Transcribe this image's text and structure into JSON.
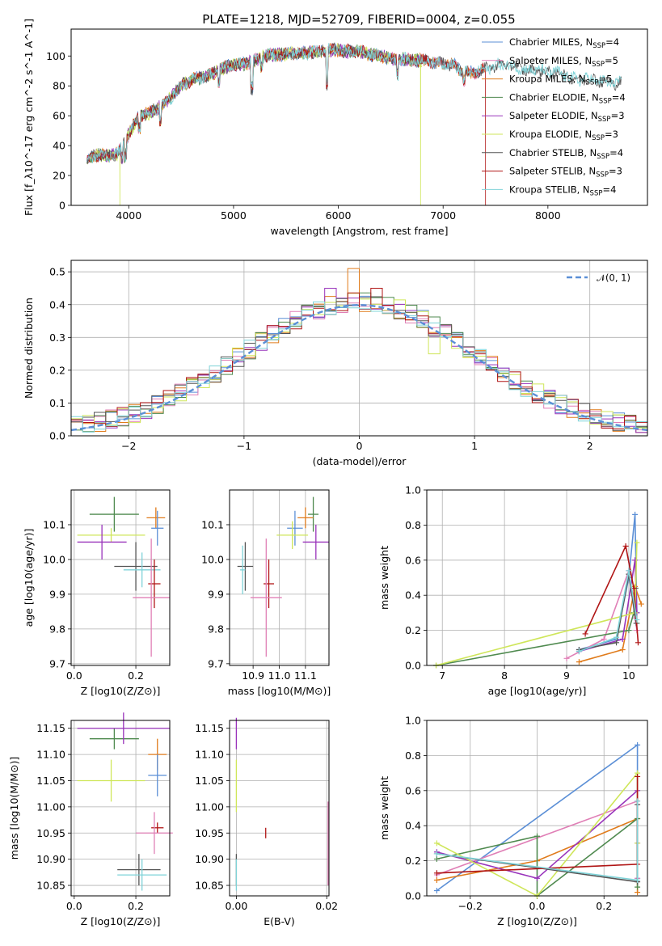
{
  "colors": {
    "chabrier_miles": "#5b8fd6",
    "salpeter_miles": "#e07fb6",
    "kroupa_miles": "#e07b1b",
    "chabrier_elodie": "#4f8a4f",
    "salpeter_elodie": "#9933bb",
    "kroupa_elodie": "#cfe65a",
    "chabrier_stelib": "#555555",
    "salpeter_stelib": "#b01515",
    "kroupa_stelib": "#7fd3d8"
  },
  "chart_data": [
    {
      "id": "spectrum",
      "type": "line",
      "title": "PLATE=1218, MJD=52709, FIBERID=0004, z=0.055",
      "xlabel": "wavelength [Angstrom, rest frame]",
      "ylabel": "Flux [f_λ10^-17 erg cm^-2 s^-1 A^-1]",
      "xlim": [
        3450,
        8950
      ],
      "ylim": [
        0,
        118
      ],
      "xticks": [
        "4000",
        "5000",
        "6000",
        "7000",
        "8000"
      ],
      "yticks": [
        "0",
        "20",
        "40",
        "60",
        "80",
        "100"
      ],
      "grid": false,
      "legend_position": "top-right",
      "legend": [
        {
          "key": "chabrier_miles",
          "label": "Chabrier MILES, N",
          "sub": "SSP",
          "tail": "=4"
        },
        {
          "key": "salpeter_miles",
          "label": "Salpeter MILES, N",
          "sub": "SSP",
          "tail": "=5"
        },
        {
          "key": "kroupa_miles",
          "label": "Kroupa MILES, N",
          "sub": "SSP",
          "tail": "=5"
        },
        {
          "key": "chabrier_elodie",
          "label": "Chabrier ELODIE, N",
          "sub": "SSP",
          "tail": "=4"
        },
        {
          "key": "salpeter_elodie",
          "label": "Salpeter ELODIE, N",
          "sub": "SSP",
          "tail": "=3"
        },
        {
          "key": "kroupa_elodie",
          "label": "Kroupa ELODIE, N",
          "sub": "SSP",
          "tail": "=3"
        },
        {
          "key": "chabrier_stelib",
          "label": "Chabrier STELIB, N",
          "sub": "SSP",
          "tail": "=4"
        },
        {
          "key": "salpeter_stelib",
          "label": "Salpeter STELIB, N",
          "sub": "SSP",
          "tail": "=3"
        },
        {
          "key": "kroupa_stelib",
          "label": "Kroupa STELIB, N",
          "sub": "SSP",
          "tail": "=4"
        }
      ],
      "series_range": {
        "chabrier_miles": [
          3600,
          7400
        ],
        "salpeter_miles": [
          3600,
          7400
        ],
        "kroupa_miles": [
          3600,
          7400
        ],
        "chabrier_elodie": [
          3600,
          6800
        ],
        "salpeter_elodie": [
          3600,
          6800
        ],
        "kroupa_elodie": [
          3600,
          6800
        ],
        "chabrier_stelib": [
          3600,
          8700
        ],
        "salpeter_stelib": [
          3600,
          7400
        ],
        "kroupa_stelib": [
          3600,
          8700
        ]
      },
      "continuum": [
        [
          3600,
          30
        ],
        [
          3700,
          34
        ],
        [
          3800,
          33
        ],
        [
          3900,
          35
        ],
        [
          4000,
          48
        ],
        [
          4100,
          60
        ],
        [
          4200,
          62
        ],
        [
          4300,
          66
        ],
        [
          4400,
          72
        ],
        [
          4500,
          80
        ],
        [
          4600,
          84
        ],
        [
          4700,
          86
        ],
        [
          4800,
          88
        ],
        [
          4900,
          92
        ],
        [
          5000,
          94
        ],
        [
          5100,
          95
        ],
        [
          5200,
          97
        ],
        [
          5300,
          100
        ],
        [
          5400,
          101
        ],
        [
          5500,
          101
        ],
        [
          5600,
          102
        ],
        [
          5700,
          102
        ],
        [
          5800,
          103
        ],
        [
          5900,
          104
        ],
        [
          6000,
          104
        ],
        [
          6100,
          103
        ],
        [
          6200,
          103
        ],
        [
          6300,
          101
        ],
        [
          6400,
          100
        ],
        [
          6500,
          98
        ],
        [
          6600,
          98
        ],
        [
          6700,
          97
        ],
        [
          6800,
          97
        ],
        [
          6900,
          96
        ],
        [
          7000,
          95
        ],
        [
          7100,
          94
        ],
        [
          7200,
          89
        ],
        [
          7300,
          89
        ],
        [
          7400,
          91
        ],
        [
          7500,
          94
        ],
        [
          7600,
          94
        ],
        [
          7700,
          93
        ],
        [
          7800,
          90
        ],
        [
          7900,
          91
        ],
        [
          8000,
          89
        ],
        [
          8100,
          89
        ],
        [
          8200,
          86
        ],
        [
          8300,
          84
        ],
        [
          8400,
          85
        ],
        [
          8500,
          83
        ],
        [
          8600,
          82
        ],
        [
          8700,
          82
        ]
      ],
      "absorption_lines": [
        [
          3934,
          -8
        ],
        [
          3969,
          -10
        ],
        [
          4101,
          -8
        ],
        [
          4300,
          -10
        ],
        [
          4861,
          -8
        ],
        [
          5175,
          -18
        ],
        [
          5270,
          -6
        ],
        [
          5893,
          -22
        ],
        [
          6563,
          -10
        ],
        [
          7200,
          -6
        ]
      ],
      "edge_drops": [
        [
          3915,
          "kroupa_elodie"
        ],
        [
          6785,
          "kroupa_elodie"
        ],
        [
          7405,
          "salpeter_stelib"
        ]
      ]
    },
    {
      "id": "residuals",
      "type": "histogram",
      "xlabel": "(data-model)/error",
      "ylabel": "Normed distribution",
      "xlim": [
        -2.5,
        2.5
      ],
      "ylim": [
        0,
        0.535
      ],
      "xticks": [
        "−2",
        "−1",
        "0",
        "1",
        "2"
      ],
      "yticks": [
        "0.0",
        "0.1",
        "0.2",
        "0.3",
        "0.4",
        "0.5"
      ],
      "grid": true,
      "legend_position": "top-right",
      "reference_curve": {
        "label": "𝒩(0, 1)",
        "color": "#5b8fd6"
      },
      "bin_width": 0.1,
      "notable_bins": {
        "kroupa_miles": [
          [
            -0.1,
            0.51
          ]
        ],
        "salpeter_elodie": [
          [
            -0.3,
            0.45
          ]
        ],
        "kroupa_elodie": [
          [
            0.6,
            0.25
          ]
        ],
        "salpeter_stelib": [
          [
            0.1,
            0.45
          ]
        ]
      }
    },
    {
      "id": "age-vs-Z",
      "type": "scatter",
      "xlabel": "Z [log10(Z/Z⊙)]",
      "ylabel": "age [log10(age/yr)]",
      "xlim": [
        -0.01,
        0.31
      ],
      "ylim": [
        9.695,
        10.2
      ],
      "xticks": [
        "0.0",
        "0.2"
      ],
      "yticks": [
        "9.7",
        "9.8",
        "9.9",
        "10.0",
        "10.1"
      ],
      "grid": true,
      "points": [
        {
          "key": "chabrier_elodie",
          "x": 0.13,
          "y": 10.13,
          "xerr": 0.08,
          "yerr": 0.05
        },
        {
          "key": "kroupa_miles",
          "x": 0.265,
          "y": 10.12,
          "xerr": 0.03,
          "yerr": 0.03
        },
        {
          "key": "chabrier_miles",
          "x": 0.27,
          "y": 10.09,
          "xerr": 0.02,
          "yerr": 0.05
        },
        {
          "key": "kroupa_elodie",
          "x": 0.12,
          "y": 10.07,
          "xerr": 0.11,
          "yerr": 0.02
        },
        {
          "key": "salpeter_elodie",
          "x": 0.09,
          "y": 10.05,
          "xerr": 0.08,
          "yerr": 0.05
        },
        {
          "key": "chabrier_stelib",
          "x": 0.2,
          "y": 9.98,
          "xerr": 0.07,
          "yerr": 0.07
        },
        {
          "key": "kroupa_stelib",
          "x": 0.22,
          "y": 9.97,
          "xerr": 0.06,
          "yerr": 0.05
        },
        {
          "key": "salpeter_stelib",
          "x": 0.26,
          "y": 9.93,
          "xerr": 0.02,
          "yerr": 0.07
        },
        {
          "key": "salpeter_miles",
          "x": 0.25,
          "y": 9.89,
          "xerr": 0.06,
          "yerr": 0.17
        }
      ]
    },
    {
      "id": "age-vs-mass",
      "type": "scatter",
      "xlabel": "mass [log10(M/M⊙)]",
      "ylabel": "",
      "xlim": [
        10.81,
        11.19
      ],
      "ylim": [
        9.695,
        10.2
      ],
      "xticks": [
        "10.9",
        "11.0",
        "11.1"
      ],
      "yticks": [
        "9.7",
        "9.8",
        "9.9",
        "10.0",
        "10.1"
      ],
      "grid": true,
      "points": [
        {
          "key": "chabrier_elodie",
          "x": 11.13,
          "y": 10.13,
          "xerr": 0.02,
          "yerr": 0.05
        },
        {
          "key": "kroupa_miles",
          "x": 11.1,
          "y": 10.12,
          "xerr": 0.03,
          "yerr": 0.03
        },
        {
          "key": "chabrier_miles",
          "x": 11.06,
          "y": 10.09,
          "xerr": 0.03,
          "yerr": 0.05
        },
        {
          "key": "kroupa_elodie",
          "x": 11.05,
          "y": 10.07,
          "xerr": 0.06,
          "yerr": 0.04
        },
        {
          "key": "salpeter_elodie",
          "x": 11.14,
          "y": 10.05,
          "xerr": 0.05,
          "yerr": 0.05
        },
        {
          "key": "chabrier_stelib",
          "x": 10.87,
          "y": 9.98,
          "xerr": 0.03,
          "yerr": 0.07
        },
        {
          "key": "kroupa_stelib",
          "x": 10.86,
          "y": 9.97,
          "xerr": 0.01,
          "yerr": 0.07
        },
        {
          "key": "salpeter_stelib",
          "x": 10.96,
          "y": 9.93,
          "xerr": 0.02,
          "yerr": 0.07
        },
        {
          "key": "salpeter_miles",
          "x": 10.95,
          "y": 9.89,
          "xerr": 0.06,
          "yerr": 0.17
        }
      ]
    },
    {
      "id": "weight-vs-age",
      "type": "line",
      "xlabel": "age [log10(age/yr)]",
      "ylabel": "mass weight",
      "xlim": [
        6.75,
        10.3
      ],
      "ylim": [
        0,
        1
      ],
      "xticks": [
        "7",
        "8",
        "9",
        "10"
      ],
      "yticks": [
        "0.0",
        "0.2",
        "0.4",
        "0.6",
        "0.8",
        "1.0"
      ],
      "grid": true,
      "series": [
        {
          "key": "chabrier_miles",
          "x": [
            9.2,
            9.8,
            10.0,
            10.1,
            10.13
          ],
          "y": [
            0.09,
            0.15,
            0.5,
            0.86,
            0.3
          ]
        },
        {
          "key": "salpeter_miles",
          "x": [
            9.0,
            9.6,
            10.0,
            10.1,
            10.13
          ],
          "y": [
            0.04,
            0.15,
            0.54,
            0.27,
            0.2
          ]
        },
        {
          "key": "kroupa_miles",
          "x": [
            9.2,
            9.9,
            10.1,
            10.2
          ],
          "y": [
            0.02,
            0.09,
            0.45,
            0.35
          ]
        },
        {
          "key": "chabrier_elodie",
          "x": [
            6.9,
            10.0,
            10.08,
            10.11,
            10.13
          ],
          "y": [
            0.0,
            0.2,
            0.3,
            0.44,
            0.24
          ]
        },
        {
          "key": "salpeter_elodie",
          "x": [
            9.2,
            9.9,
            10.1,
            10.13
          ],
          "y": [
            0.08,
            0.15,
            0.6,
            0.3
          ]
        },
        {
          "key": "kroupa_elodie",
          "x": [
            6.9,
            10.1,
            10.13
          ],
          "y": [
            0.0,
            0.3,
            0.7
          ]
        },
        {
          "key": "chabrier_stelib",
          "x": [
            9.2,
            9.8,
            10.0,
            10.12
          ],
          "y": [
            0.09,
            0.13,
            0.52,
            0.24
          ]
        },
        {
          "key": "salpeter_stelib",
          "x": [
            9.3,
            9.95,
            10.08,
            10.15
          ],
          "y": [
            0.18,
            0.68,
            0.44,
            0.13
          ]
        },
        {
          "key": "kroupa_stelib",
          "x": [
            9.2,
            9.8,
            10.0,
            10.13
          ],
          "y": [
            0.08,
            0.16,
            0.54,
            0.26
          ]
        }
      ]
    },
    {
      "id": "mass-vs-Z",
      "type": "scatter",
      "xlabel": "Z [log10(Z/Z⊙)]",
      "ylabel": "mass [log10(M/M⊙)]",
      "xlim": [
        -0.01,
        0.31
      ],
      "ylim": [
        10.83,
        11.165
      ],
      "xticks": [
        "0.0",
        "0.2"
      ],
      "yticks": [
        "10.85",
        "10.90",
        "10.95",
        "11.00",
        "11.05",
        "11.10",
        "11.15"
      ],
      "grid": true,
      "points": [
        {
          "key": "chabrier_elodie",
          "x": 0.13,
          "y": 11.13,
          "xerr": 0.08,
          "yerr": 0.02
        },
        {
          "key": "salpeter_elodie",
          "x": 0.16,
          "y": 11.15,
          "xerr": 0.15,
          "yerr": 0.03
        },
        {
          "key": "kroupa_miles",
          "x": 0.27,
          "y": 11.1,
          "xerr": 0.03,
          "yerr": 0.03
        },
        {
          "key": "chabrier_miles",
          "x": 0.27,
          "y": 11.06,
          "xerr": 0.03,
          "yerr": 0.04
        },
        {
          "key": "kroupa_elodie",
          "x": 0.12,
          "y": 11.05,
          "xerr": 0.11,
          "yerr": 0.04
        },
        {
          "key": "salpeter_stelib",
          "x": 0.27,
          "y": 10.96,
          "xerr": 0.02,
          "yerr": 0.01
        },
        {
          "key": "salpeter_miles",
          "x": 0.26,
          "y": 10.95,
          "xerr": 0.06,
          "yerr": 0.04
        },
        {
          "key": "chabrier_stelib",
          "x": 0.21,
          "y": 10.88,
          "xerr": 0.07,
          "yerr": 0.03
        },
        {
          "key": "kroupa_stelib",
          "x": 0.22,
          "y": 10.87,
          "xerr": 0.08,
          "yerr": 0.03
        }
      ]
    },
    {
      "id": "mass-vs-ebv",
      "type": "scatter",
      "xlabel": "E(B-V)",
      "ylabel": "",
      "xlim": [
        -0.0015,
        0.0205
      ],
      "ylim": [
        10.83,
        11.165
      ],
      "xticks": [
        "0.00",
        "0.02"
      ],
      "yticks": [
        "10.85",
        "10.90",
        "10.95",
        "11.00",
        "11.05",
        "11.10",
        "11.15"
      ],
      "grid": true,
      "points": [
        {
          "key": "salpeter_elodie",
          "x": 0.0,
          "y": 11.14,
          "xerr": 0,
          "yerr": 0.03
        },
        {
          "key": "kroupa_elodie",
          "x": 0.0,
          "y": 11.04,
          "xerr": 0,
          "yerr": 0.05
        },
        {
          "key": "salpeter_stelib",
          "x": 0.0065,
          "y": 10.95,
          "xerr": 0,
          "yerr": 0.01
        },
        {
          "key": "salpeter_miles",
          "x": 0.0203,
          "y": 10.93,
          "xerr": 0,
          "yerr": 0.08
        },
        {
          "key": "chabrier_stelib",
          "x": 0.0,
          "y": 10.88,
          "xerr": 0,
          "yerr": 0.03
        },
        {
          "key": "kroupa_stelib",
          "x": 0.0,
          "y": 10.87,
          "xerr": 0,
          "yerr": 0.03
        }
      ]
    },
    {
      "id": "weight-vs-Z",
      "type": "line",
      "xlabel": "Z [log10(Z/Z⊙)]",
      "ylabel": "mass weight",
      "xlim": [
        -0.33,
        0.33
      ],
      "ylim": [
        0,
        1
      ],
      "xticks": [
        "−0.2",
        "0.0",
        "0.2"
      ],
      "yticks": [
        "0.0",
        "0.2",
        "0.4",
        "0.6",
        "0.8",
        "1.0"
      ],
      "grid": true,
      "series": [
        {
          "key": "chabrier_miles",
          "x": [
            -0.3,
            0.3,
            0.3
          ],
          "y": [
            0.03,
            0.86,
            0.1
          ]
        },
        {
          "key": "salpeter_miles",
          "x": [
            -0.3,
            0.3,
            0.3
          ],
          "y": [
            0.12,
            0.54,
            0.1
          ]
        },
        {
          "key": "kroupa_miles",
          "x": [
            -0.3,
            0.0,
            0.3,
            0.3
          ],
          "y": [
            0.09,
            0.2,
            0.44,
            0.02
          ]
        },
        {
          "key": "chabrier_elodie",
          "x": [
            -0.3,
            0.0,
            0.0,
            0.3,
            0.3
          ],
          "y": [
            0.21,
            0.34,
            0.0,
            0.44,
            0.05
          ]
        },
        {
          "key": "salpeter_elodie",
          "x": [
            -0.3,
            0.0,
            0.3,
            0.3
          ],
          "y": [
            0.25,
            0.1,
            0.6,
            0.3
          ]
        },
        {
          "key": "kroupa_elodie",
          "x": [
            -0.3,
            0.0,
            0.3,
            0.3
          ],
          "y": [
            0.3,
            0.0,
            0.7,
            0.3
          ]
        },
        {
          "key": "chabrier_stelib",
          "x": [
            -0.3,
            0.3,
            0.3
          ],
          "y": [
            0.24,
            0.08,
            0.52
          ]
        },
        {
          "key": "salpeter_stelib",
          "x": [
            -0.3,
            0.3,
            0.3
          ],
          "y": [
            0.13,
            0.18,
            0.68
          ]
        },
        {
          "key": "kroupa_stelib",
          "x": [
            -0.3,
            0.3,
            0.3
          ],
          "y": [
            0.24,
            0.09,
            0.54
          ]
        }
      ]
    }
  ]
}
